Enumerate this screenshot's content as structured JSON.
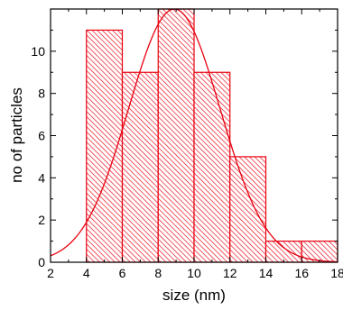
{
  "chart_data": {
    "type": "bar",
    "subtype": "histogram-with-gaussian-fit",
    "xlabel": "size (nm)",
    "ylabel": "no of particles",
    "xlim": [
      2,
      18
    ],
    "ylim": [
      0,
      12
    ],
    "x_ticks": [
      2,
      4,
      6,
      8,
      10,
      12,
      14,
      16,
      18
    ],
    "y_ticks": [
      0,
      2,
      4,
      6,
      8,
      10
    ],
    "bins": [
      {
        "start": 4,
        "end": 6,
        "count": 11
      },
      {
        "start": 6,
        "end": 8,
        "count": 9
      },
      {
        "start": 8,
        "end": 10,
        "count": 12
      },
      {
        "start": 10,
        "end": 12,
        "count": 9
      },
      {
        "start": 12,
        "end": 14,
        "count": 5
      },
      {
        "start": 14,
        "end": 16,
        "count": 1
      },
      {
        "start": 16,
        "end": 18,
        "count": 1
      }
    ],
    "fit": {
      "type": "gaussian",
      "amplitude": 12,
      "mean": 8.9,
      "sigma": 2.55
    },
    "grid": false,
    "bar_color": "#e8000f",
    "bar_fill": "diagonal-hatch"
  }
}
